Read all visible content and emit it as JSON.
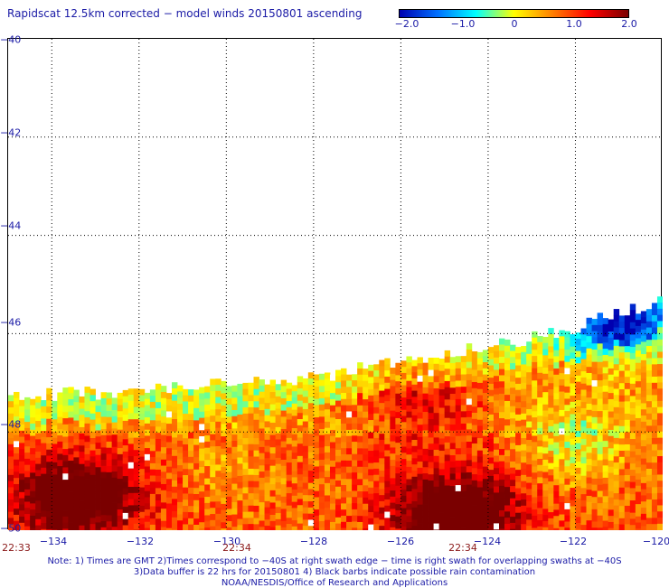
{
  "title": "Rapidscat 12.5km corrected − model winds 20150801 ascending",
  "colorbar": {
    "ticks": [
      "−2.0",
      "−1.0",
      "0",
      "1.0",
      "2.0"
    ],
    "range": [
      -2.0,
      2.0
    ],
    "colors": [
      "#0000b0",
      "#0070ff",
      "#00ffff",
      "#ffff00",
      "#ff8000",
      "#ff0000",
      "#7a0000"
    ]
  },
  "axes": {
    "y_labels": [
      "−40",
      "−42",
      "−44",
      "−46",
      "−48",
      "−50"
    ],
    "x_labels": [
      "−134",
      "−132",
      "−130",
      "−128",
      "−126",
      "−124",
      "−122",
      "−120"
    ],
    "lon_range": [
      -135.0,
      -120.0
    ],
    "lat_range": [
      -40.0,
      -50.0
    ],
    "grid": "dotted"
  },
  "times": [
    "22:33",
    "22:34",
    "22:34"
  ],
  "notes": [
    "Note: 1) Times are GMT 2)Times correspond to −40S at right swath edge − time is right swath for overlapping swaths at −40S",
    "3)Data buffer is 22 hrs for 20150801 4) Black barbs indicate possible rain contamination",
    "NOAA/NESDIS/Office of Research and Applications"
  ],
  "map_data": {
    "type": "heatmap",
    "cell_deg": 0.125,
    "swath_top_boundary": [
      [
        -135.0,
        -47.3
      ],
      [
        -129.0,
        -47.0
      ],
      [
        -126.0,
        -46.6
      ],
      [
        -122.5,
        -46.0
      ],
      [
        -120.0,
        -45.3
      ]
    ],
    "warm_regions": [
      [
        -133.5,
        -49.3,
        2.0
      ],
      [
        -124.8,
        -49.6,
        2.2
      ],
      [
        -125.5,
        -47.3,
        0.9
      ]
    ],
    "cool_regions": [
      [
        -122.0,
        -48.2,
        -0.9
      ],
      [
        -121.0,
        -45.7,
        -2.0
      ],
      [
        -130.0,
        -48.6,
        -0.3
      ]
    ]
  }
}
